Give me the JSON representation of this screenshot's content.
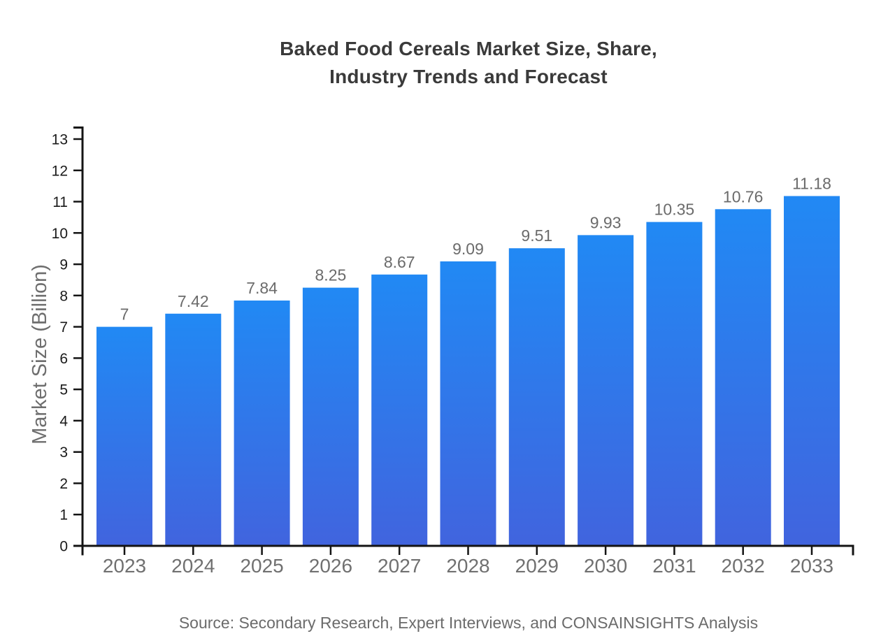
{
  "title": {
    "line1": "Baked Food Cereals Market Size, Share,",
    "line2": "Industry Trends and Forecast"
  },
  "source_note": "Source: Secondary Research, Expert Interviews, and CONSAINSIGHTS Analysis",
  "colors": {
    "background": "#ffffff",
    "title_text": "#3a3a3a",
    "axis_line": "#141414",
    "y_tick_label": "#1a1a1a",
    "x_tick_label": "#707070",
    "value_label": "#6b6b6b",
    "axis_title_text": "#6e6e6e",
    "source_text": "#6b6b6b",
    "bar_gradient_top": "#2189f4",
    "bar_gradient_bottom": "#4164de"
  },
  "chart_data": {
    "type": "bar",
    "title": "Baked Food Cereals Market Size, Share, Industry Trends and Forecast",
    "categories": [
      "2023",
      "2024",
      "2025",
      "2026",
      "2027",
      "2028",
      "2029",
      "2030",
      "2031",
      "2032",
      "2033"
    ],
    "values": [
      7,
      7.42,
      7.84,
      8.25,
      8.67,
      9.09,
      9.51,
      9.93,
      10.35,
      10.76,
      11.18
    ],
    "value_labels": [
      "7",
      "7.42",
      "7.84",
      "8.25",
      "8.67",
      "9.09",
      "9.51",
      "9.93",
      "10.35",
      "10.76",
      "11.18"
    ],
    "xlabel": "",
    "ylabel": "Market Size (Billion)",
    "ylim": [
      0,
      13
    ],
    "yticks": [
      0,
      1,
      2,
      3,
      4,
      5,
      6,
      7,
      8,
      9,
      10,
      11,
      12,
      13
    ],
    "grid": false,
    "legend": "none",
    "bar_fill": "vertical gradient, light blue at bar top to royal blue at bar base"
  }
}
